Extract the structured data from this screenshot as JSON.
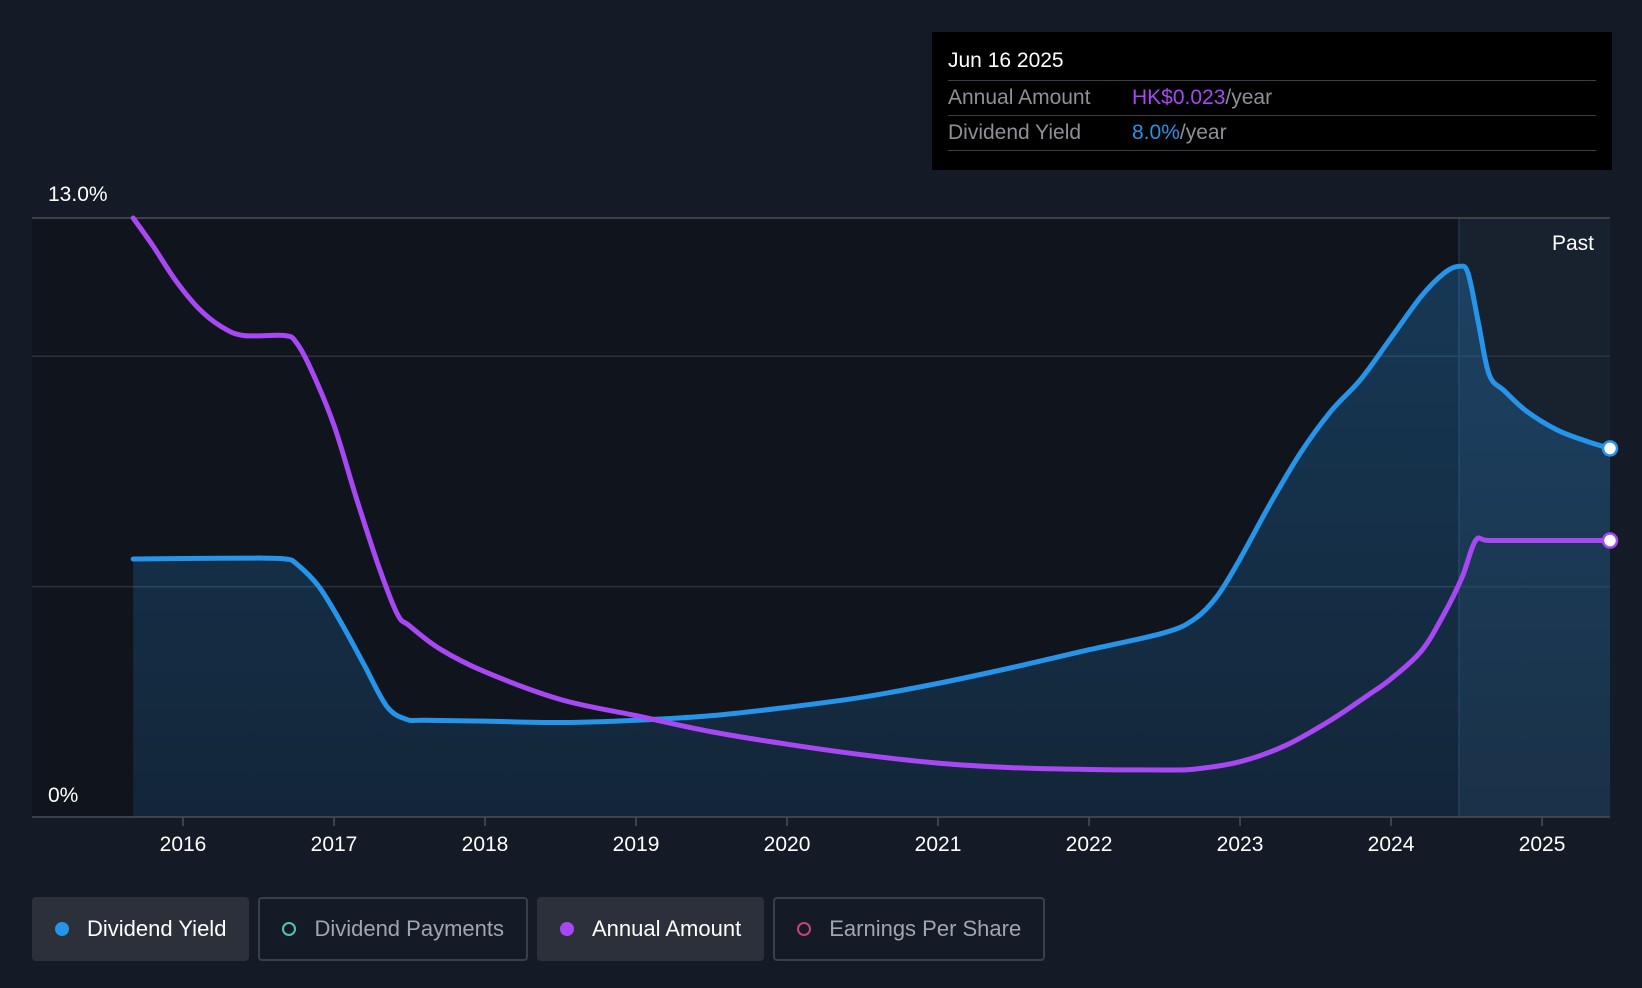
{
  "tooltip": {
    "date": "Jun 16 2025",
    "rows": [
      {
        "label": "Annual Amount",
        "value": "HK$0.023",
        "unit": "/year",
        "color": "#a748f2"
      },
      {
        "label": "Dividend Yield",
        "value": "8.0%",
        "unit": "/year",
        "color": "#2694e8"
      }
    ]
  },
  "legend": [
    {
      "label": "Dividend Yield",
      "color": "#2694e8",
      "filled": true,
      "active": true
    },
    {
      "label": "Dividend Payments",
      "color": "#55c2b4",
      "filled": false,
      "active": false
    },
    {
      "label": "Annual Amount",
      "color": "#a748f2",
      "filled": true,
      "active": true
    },
    {
      "label": "Earnings Per Share",
      "color": "#c2437b",
      "filled": false,
      "active": false
    }
  ],
  "chart_data": {
    "type": "line",
    "past_label": "Past",
    "y_tick_labels": {
      "top": "13.0%",
      "bottom": "0%"
    },
    "ylim": [
      0,
      13
    ],
    "xlim": [
      2015.0,
      2025.45
    ],
    "x_ticks": [
      2016,
      2017,
      2018,
      2019,
      2020,
      2021,
      2022,
      2023,
      2024,
      2025
    ],
    "y_gridlines": [
      0,
      5,
      10,
      13
    ],
    "past_region_start": 2024.45,
    "series": [
      {
        "name": "Dividend Yield",
        "color": "#2694e8",
        "area": true,
        "points": [
          [
            2015.67,
            5.6
          ],
          [
            2016.0,
            5.61
          ],
          [
            2016.5,
            5.62
          ],
          [
            2016.68,
            5.6
          ],
          [
            2016.75,
            5.5
          ],
          [
            2016.9,
            5.0
          ],
          [
            2017.05,
            4.2
          ],
          [
            2017.2,
            3.3
          ],
          [
            2017.35,
            2.4
          ],
          [
            2017.48,
            2.12
          ],
          [
            2017.6,
            2.1
          ],
          [
            2018.0,
            2.08
          ],
          [
            2018.5,
            2.05
          ],
          [
            2019.0,
            2.1
          ],
          [
            2019.5,
            2.2
          ],
          [
            2020.0,
            2.38
          ],
          [
            2020.5,
            2.6
          ],
          [
            2021.0,
            2.9
          ],
          [
            2021.5,
            3.25
          ],
          [
            2022.0,
            3.63
          ],
          [
            2022.5,
            4.0
          ],
          [
            2022.7,
            4.3
          ],
          [
            2022.85,
            4.8
          ],
          [
            2023.0,
            5.6
          ],
          [
            2023.2,
            6.8
          ],
          [
            2023.4,
            7.9
          ],
          [
            2023.6,
            8.8
          ],
          [
            2023.8,
            9.5
          ],
          [
            2024.0,
            10.4
          ],
          [
            2024.2,
            11.3
          ],
          [
            2024.35,
            11.8
          ],
          [
            2024.45,
            11.95
          ],
          [
            2024.51,
            11.8
          ],
          [
            2024.58,
            10.7
          ],
          [
            2024.65,
            9.6
          ],
          [
            2024.75,
            9.25
          ],
          [
            2024.9,
            8.8
          ],
          [
            2025.1,
            8.4
          ],
          [
            2025.3,
            8.15
          ],
          [
            2025.45,
            8.0
          ]
        ]
      },
      {
        "name": "Annual Amount",
        "color": "#a748f2",
        "area": false,
        "points": [
          [
            2015.67,
            13.0
          ],
          [
            2015.8,
            12.4
          ],
          [
            2015.95,
            11.65
          ],
          [
            2016.1,
            11.05
          ],
          [
            2016.25,
            10.65
          ],
          [
            2016.4,
            10.45
          ],
          [
            2016.67,
            10.45
          ],
          [
            2016.75,
            10.3
          ],
          [
            2016.85,
            9.7
          ],
          [
            2017.0,
            8.5
          ],
          [
            2017.15,
            6.9
          ],
          [
            2017.3,
            5.4
          ],
          [
            2017.42,
            4.4
          ],
          [
            2017.5,
            4.15
          ],
          [
            2017.7,
            3.65
          ],
          [
            2018.0,
            3.15
          ],
          [
            2018.5,
            2.55
          ],
          [
            2019.0,
            2.2
          ],
          [
            2019.5,
            1.85
          ],
          [
            2020.0,
            1.58
          ],
          [
            2020.5,
            1.35
          ],
          [
            2021.0,
            1.17
          ],
          [
            2021.5,
            1.07
          ],
          [
            2022.0,
            1.03
          ],
          [
            2022.5,
            1.02
          ],
          [
            2022.7,
            1.04
          ],
          [
            2023.0,
            1.2
          ],
          [
            2023.3,
            1.55
          ],
          [
            2023.6,
            2.1
          ],
          [
            2023.85,
            2.65
          ],
          [
            2024.0,
            3.0
          ],
          [
            2024.2,
            3.6
          ],
          [
            2024.35,
            4.4
          ],
          [
            2024.47,
            5.2
          ],
          [
            2024.56,
            6.0
          ],
          [
            2024.65,
            6.0
          ],
          [
            2025.0,
            6.0
          ],
          [
            2025.45,
            6.0
          ]
        ]
      }
    ]
  }
}
